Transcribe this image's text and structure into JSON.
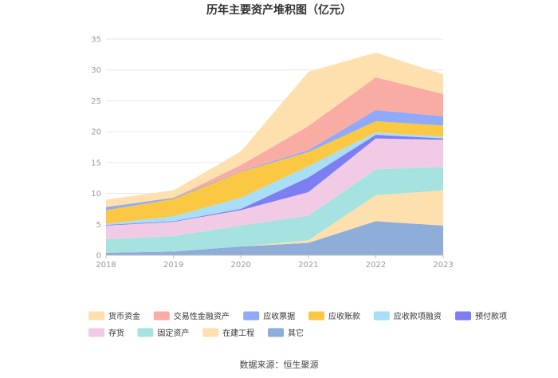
{
  "chart_data": {
    "type": "area",
    "stacked": true,
    "title": "历年主要资产堆积图（亿元）",
    "x": [
      "2018",
      "2019",
      "2020",
      "2021",
      "2022",
      "2023"
    ],
    "ylim": [
      0,
      35
    ],
    "yticks": [
      0,
      5,
      10,
      15,
      20,
      25,
      30,
      35
    ],
    "grid": true,
    "legend_position": "bottom",
    "series": [
      {
        "name": "其它",
        "color": "#8eadd8",
        "values": [
          0.4,
          0.6,
          1.4,
          2.0,
          5.5,
          4.8
        ]
      },
      {
        "name": "在建工程",
        "color": "#fde0ad",
        "values": [
          0.0,
          0.0,
          0.0,
          0.4,
          4.2,
          5.7
        ]
      },
      {
        "name": "固定资产",
        "color": "#a6e3e0",
        "values": [
          2.2,
          2.5,
          3.4,
          4.0,
          4.2,
          3.8
        ]
      },
      {
        "name": "存货",
        "color": "#f1cbe6",
        "values": [
          2.2,
          2.3,
          2.5,
          3.8,
          5.0,
          4.4
        ]
      },
      {
        "name": "预付款项",
        "color": "#7d7ef2",
        "values": [
          0.1,
          0.1,
          0.2,
          2.4,
          0.6,
          0.2
        ]
      },
      {
        "name": "应收款项融资",
        "color": "#a9def7",
        "values": [
          0.2,
          0.8,
          1.8,
          1.8,
          0.4,
          0.3
        ]
      },
      {
        "name": "应收账款",
        "color": "#fbc844",
        "values": [
          2.2,
          2.8,
          4.2,
          2.3,
          1.8,
          1.8
        ]
      },
      {
        "name": "应收票据",
        "color": "#8faaf8",
        "values": [
          0.5,
          0.2,
          0.1,
          0.3,
          1.8,
          1.5
        ]
      },
      {
        "name": "交易性金融资产",
        "color": "#f9aca4",
        "values": [
          0.0,
          0.0,
          1.0,
          3.9,
          5.3,
          3.6
        ]
      },
      {
        "name": "货币资金",
        "color": "#fde0ad",
        "values": [
          1.2,
          1.2,
          2.2,
          8.8,
          4.0,
          3.2
        ]
      }
    ],
    "legend_order": [
      "货币资金",
      "交易性金融资产",
      "应收票据",
      "应收账款",
      "应收款项融资",
      "预付款项",
      "存货",
      "固定资产",
      "在建工程",
      "其它"
    ]
  },
  "source_label": "数据来源：恒生聚源"
}
